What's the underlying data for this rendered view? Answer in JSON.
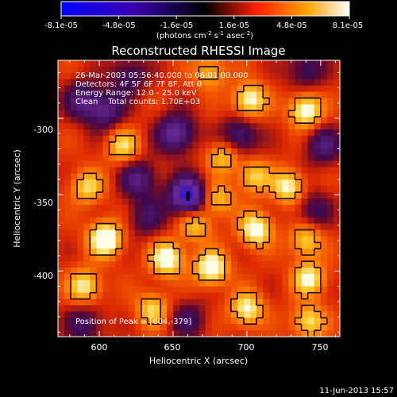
{
  "colorbar": {
    "tick_labels": [
      "-8.1e-05",
      "-4.8e-05",
      "-1.6e-05",
      "1.6e-05",
      "4.8e-05",
      "8.1e-05"
    ],
    "unit_parts": [
      "(photons cm",
      "-2",
      " s",
      "-1",
      " asec",
      "-2",
      ")"
    ],
    "range": [
      -8.1e-05,
      8.1e-05
    ]
  },
  "chart_data": {
    "type": "heatmap",
    "title": "Reconstructed RHESSI Image",
    "xlabel": "Heliocentric X (arcsec)",
    "ylabel": "Heliocentric Y (arcsec)",
    "xlim": [
      572,
      763
    ],
    "ylim": [
      -443,
      -262
    ],
    "x_ticks": [
      600,
      650,
      700,
      750
    ],
    "y_ticks": [
      -300,
      -350,
      -400
    ],
    "x_tick_labels": [
      "600",
      "650",
      "700",
      "750"
    ],
    "y_tick_labels": [
      "-300",
      "-350",
      "-400"
    ],
    "annotations": [
      "26-Mar-2003 05:56:40.000 to 06:01:00.000",
      "Detectors: 4F 5F 6F 7F 8F, Att 0",
      "Energy Range: 12.0 - 25.0 keV",
      "Clean    Total counts: 1.70E+03"
    ],
    "peak_label": "Position of Peak = [604,-379]",
    "peak": [
      604,
      -379
    ],
    "minimum_marker": [
      660,
      -351
    ],
    "hot_spots": [
      {
        "x": 604,
        "y": -379,
        "level": 1.0
      },
      {
        "x": 646,
        "y": -392,
        "level": 0.85
      },
      {
        "x": 676,
        "y": -398,
        "level": 0.85
      },
      {
        "x": 740,
        "y": -295,
        "level": 0.8
      },
      {
        "x": 702,
        "y": -288,
        "level": 0.75
      },
      {
        "x": 706,
        "y": -373,
        "level": 0.8
      },
      {
        "x": 728,
        "y": -345,
        "level": 0.7
      },
      {
        "x": 590,
        "y": -410,
        "level": 0.65
      },
      {
        "x": 742,
        "y": -405,
        "level": 0.7
      },
      {
        "x": 700,
        "y": -425,
        "level": 0.7
      },
      {
        "x": 742,
        "y": -433,
        "level": 0.6
      },
      {
        "x": 636,
        "y": -425,
        "level": 0.55
      },
      {
        "x": 592,
        "y": -345,
        "level": 0.55
      },
      {
        "x": 616,
        "y": -318,
        "level": 0.55
      },
      {
        "x": 684,
        "y": -325,
        "level": 0.5
      },
      {
        "x": 705,
        "y": -338,
        "level": 0.55
      },
      {
        "x": 680,
        "y": -353,
        "level": 0.5
      },
      {
        "x": 675,
        "y": -270,
        "level": 0.45
      },
      {
        "x": 740,
        "y": -380,
        "level": 0.55
      },
      {
        "x": 665,
        "y": -370,
        "level": 0.5
      }
    ],
    "cold_spots": [
      {
        "x": 660,
        "y": -351,
        "level": -0.9
      },
      {
        "x": 652,
        "y": -310,
        "level": -0.65
      },
      {
        "x": 695,
        "y": -312,
        "level": -0.5
      },
      {
        "x": 627,
        "y": -340,
        "level": -0.5
      },
      {
        "x": 604,
        "y": -295,
        "level": -0.5
      },
      {
        "x": 588,
        "y": -288,
        "level": -0.45
      },
      {
        "x": 620,
        "y": -272,
        "level": -0.4
      },
      {
        "x": 752,
        "y": -318,
        "level": -0.45
      },
      {
        "x": 740,
        "y": -268,
        "level": -0.4
      },
      {
        "x": 632,
        "y": -365,
        "level": -0.35
      },
      {
        "x": 745,
        "y": -360,
        "level": -0.35
      },
      {
        "x": 660,
        "y": -432,
        "level": -0.35
      },
      {
        "x": 590,
        "y": -435,
        "level": -0.4
      }
    ]
  },
  "footer": {
    "date": "11-Jun-2013 15:57"
  }
}
